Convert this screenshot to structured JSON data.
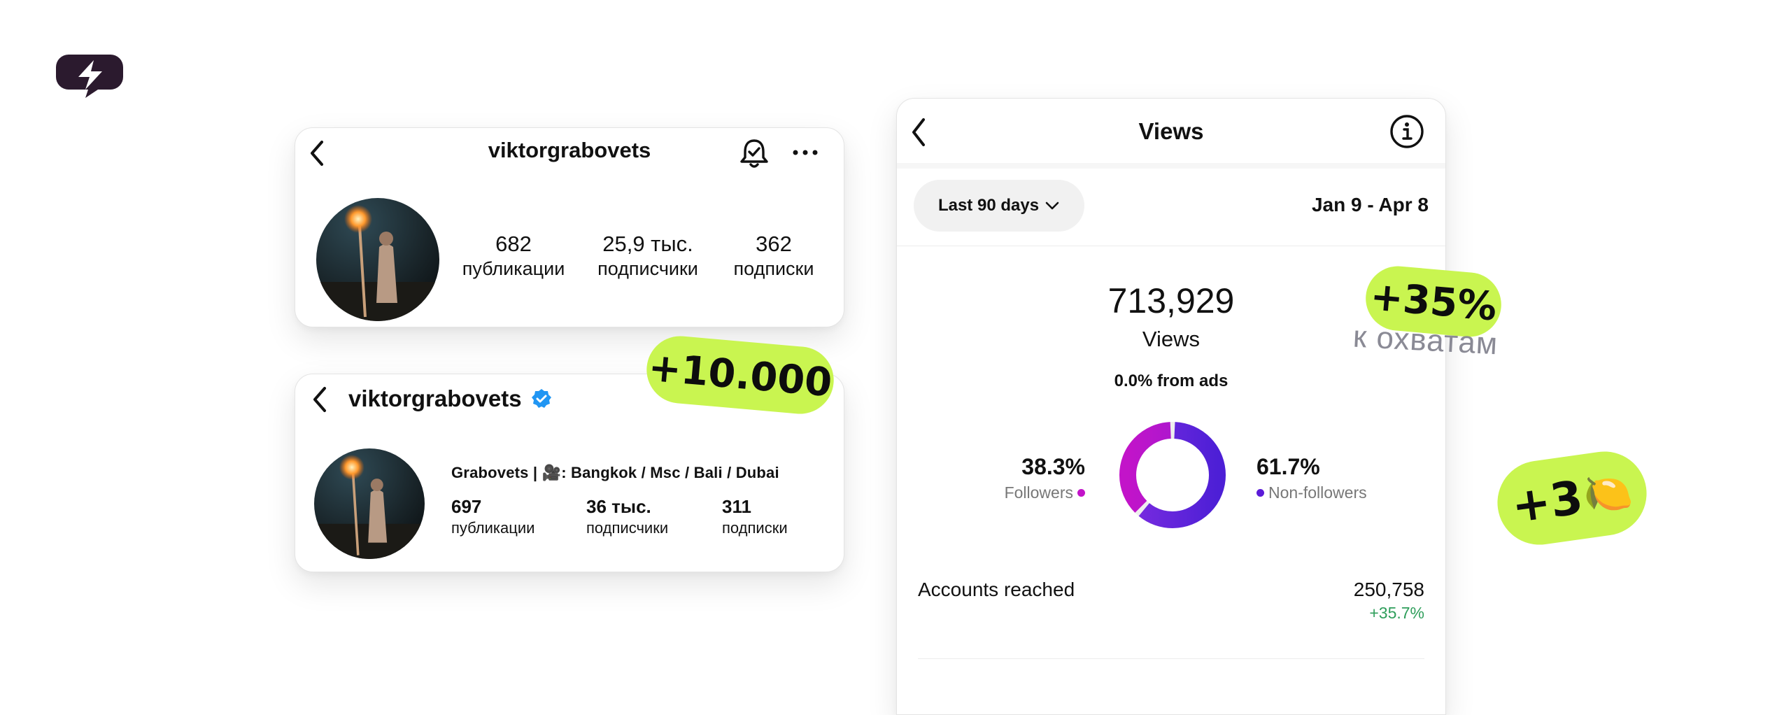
{
  "colors": {
    "accent_badge": "#c9f550",
    "followers": "#c214c9",
    "non_followers": "#5b1bd8",
    "growth_green": "#2f9e5b",
    "verified_blue": "#2196f3",
    "logo": "#2b1a2e"
  },
  "profile_before": {
    "username": "viktorgrabovets",
    "posts_value": "682",
    "posts_label": "публикации",
    "followers_value": "25,9 тыс.",
    "followers_label": "подписчики",
    "following_value": "362",
    "following_label": "подписки",
    "icons": [
      "back-icon",
      "bell-icon",
      "more-icon"
    ]
  },
  "profile_after": {
    "username": "viktorgrabovets",
    "bio": "Grabovets | 🎥: Bangkok / Msc / Bali / Dubai",
    "posts_value": "697",
    "posts_label": "публикации",
    "followers_value": "36 тыс.",
    "followers_label": "подписчики",
    "following_value": "311",
    "following_label": "подписки",
    "icons": [
      "back-icon",
      "verified-icon"
    ]
  },
  "views": {
    "title": "Views",
    "range_label": "Last 90 days",
    "date_range": "Jan 9 - Apr 8",
    "total": "713,929",
    "total_label": "Views",
    "from_ads": "0.0% from ads",
    "followers_pct": "38.3%",
    "followers_label": "Followers",
    "followers_fraction": 0.383,
    "non_followers_pct": "61.7%",
    "non_followers_label": "Non-followers",
    "accounts_reached_label": "Accounts reached",
    "accounts_reached_value": "250,758",
    "accounts_reached_change": "+35.7%",
    "icons": [
      "back-icon",
      "info-icon",
      "chevron-down-icon"
    ]
  },
  "badges": {
    "followers_gain": "+10.000",
    "reach_gain": "+35%",
    "reach_note": "к охватам",
    "money_gain": "+3",
    "money_emoji": "🍋"
  }
}
